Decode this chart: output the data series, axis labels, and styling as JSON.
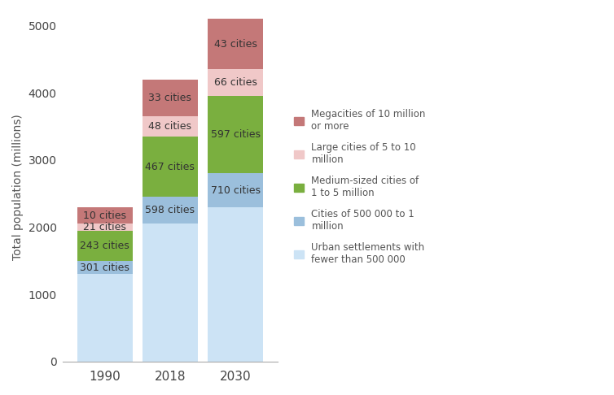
{
  "years": [
    "1990",
    "2018",
    "2030"
  ],
  "segments": [
    {
      "label": "Urban settlements with\nfewer than 500 000",
      "values": [
        1300,
        2050,
        2300
      ],
      "color": "#cce3f5"
    },
    {
      "label": "Cities of 500 000 to 1\nmillion",
      "values": [
        200,
        400,
        500
      ],
      "color": "#9bbfdc",
      "annotations": [
        "301 cities",
        "598 cities",
        "710 cities"
      ]
    },
    {
      "label": "Medium-sized cities of\n1 to 5 million",
      "values": [
        450,
        900,
        1150
      ],
      "color": "#7aaf3f",
      "annotations": [
        "243 cities",
        "467 cities",
        "597 cities"
      ]
    },
    {
      "label": "Large cities of 5 to 10\nmillion",
      "values": [
        100,
        300,
        400
      ],
      "color": "#f0c8c8",
      "annotations": [
        "21 cities",
        "48 cities",
        "66 cities"
      ]
    },
    {
      "label": "Megacities of 10 million\nor more",
      "values": [
        250,
        550,
        750
      ],
      "color": "#c47878",
      "annotations": [
        "10 cities",
        "33 cities",
        "43 cities"
      ]
    }
  ],
  "ylabel": "Total population (millions)",
  "ylim": [
    0,
    5200
  ],
  "yticks": [
    0,
    1000,
    2000,
    3000,
    4000,
    5000
  ],
  "bar_width": 0.85,
  "legend_colors": [
    "#c47878",
    "#f0c8c8",
    "#7aaf3f",
    "#9bbfdc",
    "#cce3f5"
  ],
  "legend_labels": [
    "Megacities of 10 million\nor more",
    "Large cities of 5 to 10\nmillion",
    "Medium-sized cities of\n1 to 5 million",
    "Cities of 500 000 to 1\nmillion",
    "Urban settlements with\nfewer than 500 000"
  ],
  "annotation_fontsize": 9,
  "background_color": "#ffffff",
  "fig_width": 7.54,
  "fig_height": 4.86,
  "dpi": 100
}
